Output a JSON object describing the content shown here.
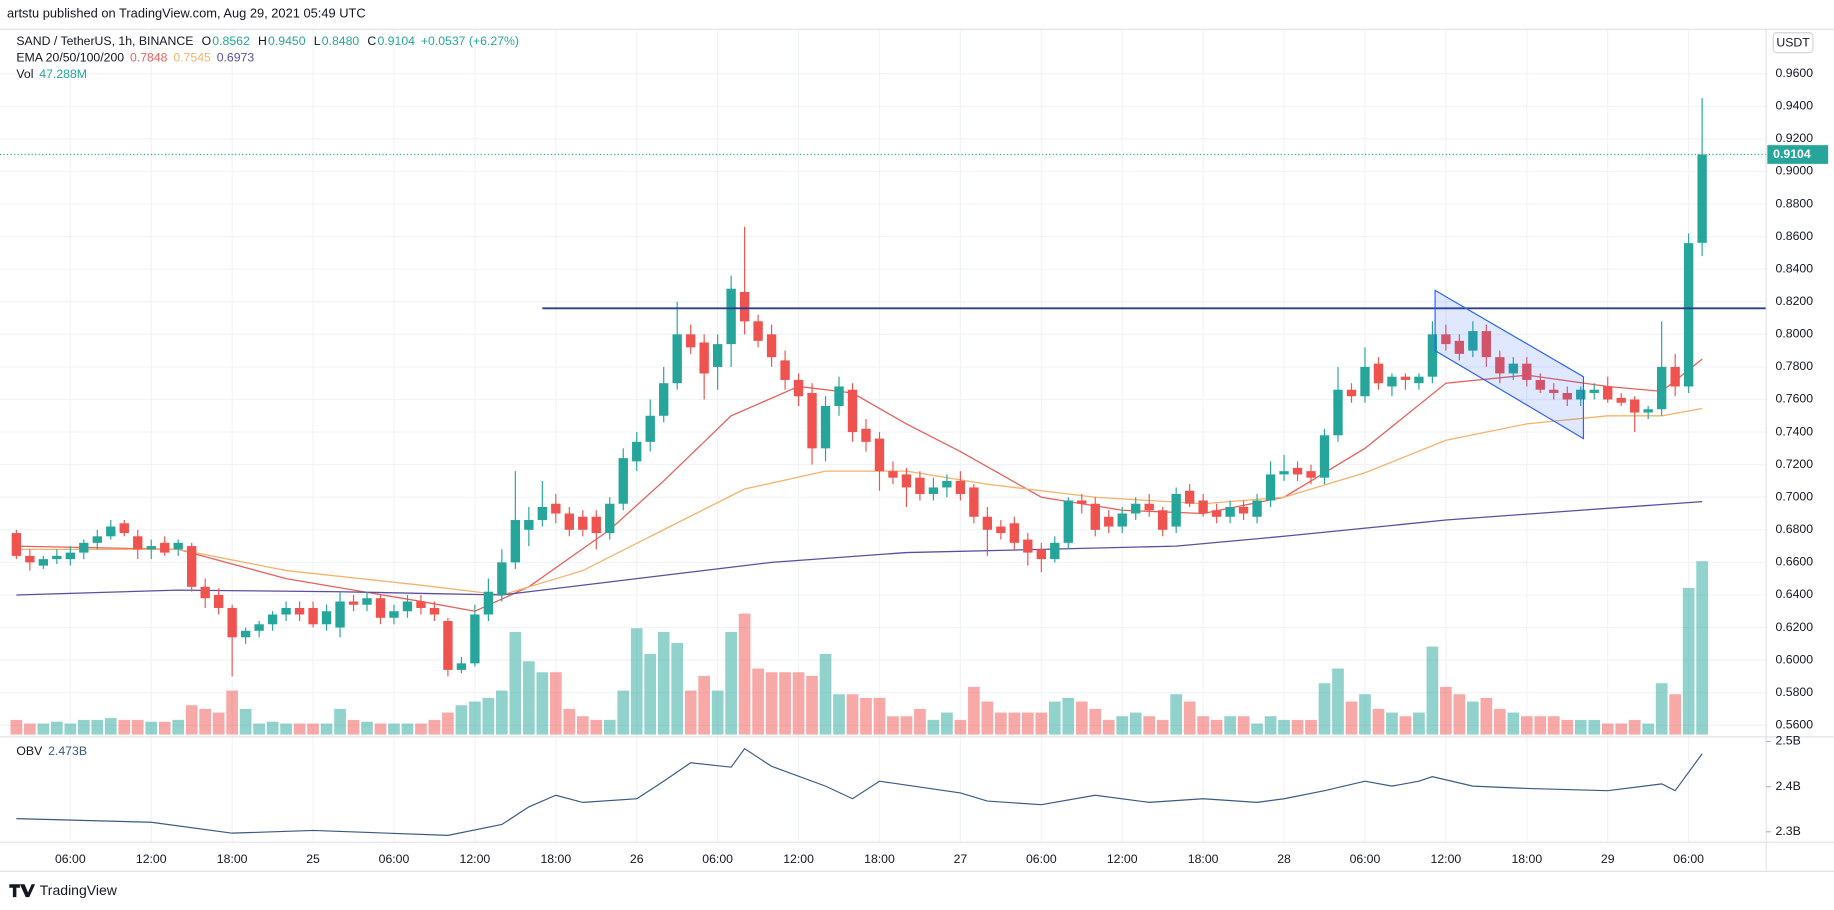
{
  "header": {
    "published": "artstu published on TradingView.com, Aug 29, 2021 05:49 UTC",
    "currency": "USDT"
  },
  "footer": {
    "brand": "TradingView"
  },
  "chart_data": {
    "type": "candlestick",
    "legend": {
      "symbol": "SAND / TetherUS, 1h, BINANCE",
      "ohlc": [
        {
          "key": "O",
          "value": "0.8562"
        },
        {
          "key": "H",
          "value": "0.9450"
        },
        {
          "key": "L",
          "value": "0.8480"
        },
        {
          "key": "C",
          "value": "0.9104"
        }
      ],
      "change": "+0.0537 (+6.27%)",
      "ema_title": "EMA 20/50/100/200",
      "ema_values": [
        "0.7848",
        "0.7545",
        "0.6973"
      ],
      "vol_title": "Vol",
      "vol_value": "47.288M"
    },
    "up_color": "#26a69a",
    "down_color": "#ef5350",
    "categories": [
      null,
      null,
      null,
      null,
      "06:00",
      null,
      null,
      null,
      null,
      null,
      "12:00",
      null,
      null,
      null,
      null,
      null,
      "18:00",
      null,
      null,
      null,
      null,
      null,
      "25",
      null,
      null,
      null,
      null,
      null,
      "06:00",
      null,
      null,
      null,
      null,
      null,
      "12:00",
      null,
      null,
      null,
      null,
      null,
      "18:00",
      null,
      null,
      null,
      null,
      null,
      "26",
      null,
      null,
      null,
      null,
      null,
      "06:00",
      null,
      null,
      null,
      null,
      null,
      "12:00",
      null,
      null,
      null,
      null,
      null,
      "18:00",
      null,
      null,
      null,
      null,
      null,
      "27",
      null,
      null,
      null,
      null,
      null,
      "06:00",
      null,
      null,
      null,
      null,
      null,
      "12:00",
      null,
      null,
      null,
      null,
      null,
      "18:00",
      null,
      null,
      null,
      null,
      null,
      "28",
      null,
      null,
      null,
      null,
      null,
      "06:00",
      null,
      null,
      null,
      null,
      null,
      "12:00",
      null,
      null,
      null,
      null,
      null,
      "18:00",
      null,
      null,
      null,
      null,
      null,
      "29",
      null,
      null,
      null,
      null,
      null,
      "06:00",
      null
    ],
    "candles": [
      [
        0.678,
        0.68,
        0.662,
        0.664
      ],
      [
        0.664,
        0.668,
        0.655,
        0.66
      ],
      [
        0.658,
        0.664,
        0.656,
        0.662
      ],
      [
        0.662,
        0.668,
        0.659,
        0.664
      ],
      [
        0.662,
        0.67,
        0.658,
        0.666
      ],
      [
        0.666,
        0.674,
        0.662,
        0.672
      ],
      [
        0.672,
        0.68,
        0.668,
        0.676
      ],
      [
        0.676,
        0.686,
        0.674,
        0.682
      ],
      [
        0.684,
        0.686,
        0.676,
        0.678
      ],
      [
        0.676,
        0.68,
        0.662,
        0.668
      ],
      [
        0.668,
        0.674,
        0.662,
        0.67
      ],
      [
        0.672,
        0.676,
        0.664,
        0.666
      ],
      [
        0.668,
        0.674,
        0.664,
        0.672
      ],
      [
        0.67,
        0.672,
        0.642,
        0.645
      ],
      [
        0.645,
        0.65,
        0.632,
        0.638
      ],
      [
        0.64,
        0.644,
        0.628,
        0.632
      ],
      [
        0.632,
        0.634,
        0.59,
        0.614
      ],
      [
        0.614,
        0.62,
        0.61,
        0.618
      ],
      [
        0.618,
        0.624,
        0.614,
        0.622
      ],
      [
        0.622,
        0.63,
        0.618,
        0.628
      ],
      [
        0.628,
        0.636,
        0.624,
        0.632
      ],
      [
        0.632,
        0.636,
        0.624,
        0.628
      ],
      [
        0.632,
        0.636,
        0.62,
        0.622
      ],
      [
        0.622,
        0.634,
        0.618,
        0.63
      ],
      [
        0.62,
        0.642,
        0.614,
        0.636
      ],
      [
        0.636,
        0.64,
        0.63,
        0.634
      ],
      [
        0.634,
        0.642,
        0.63,
        0.638
      ],
      [
        0.638,
        0.64,
        0.622,
        0.626
      ],
      [
        0.626,
        0.634,
        0.622,
        0.63
      ],
      [
        0.63,
        0.64,
        0.626,
        0.636
      ],
      [
        0.636,
        0.64,
        0.628,
        0.632
      ],
      [
        0.632,
        0.636,
        0.624,
        0.628
      ],
      [
        0.624,
        0.626,
        0.59,
        0.594
      ],
      [
        0.594,
        0.602,
        0.592,
        0.598
      ],
      [
        0.598,
        0.634,
        0.596,
        0.628
      ],
      [
        0.628,
        0.65,
        0.624,
        0.642
      ],
      [
        0.64,
        0.668,
        0.636,
        0.66
      ],
      [
        0.66,
        0.716,
        0.656,
        0.686
      ],
      [
        0.68,
        0.694,
        0.67,
        0.686
      ],
      [
        0.686,
        0.71,
        0.682,
        0.694
      ],
      [
        0.696,
        0.702,
        0.684,
        0.69
      ],
      [
        0.69,
        0.694,
        0.676,
        0.68
      ],
      [
        0.688,
        0.692,
        0.676,
        0.68
      ],
      [
        0.688,
        0.692,
        0.668,
        0.678
      ],
      [
        0.678,
        0.7,
        0.674,
        0.696
      ],
      [
        0.696,
        0.73,
        0.692,
        0.724
      ],
      [
        0.722,
        0.74,
        0.716,
        0.734
      ],
      [
        0.734,
        0.76,
        0.728,
        0.75
      ],
      [
        0.75,
        0.78,
        0.746,
        0.77
      ],
      [
        0.77,
        0.82,
        0.766,
        0.8
      ],
      [
        0.8,
        0.806,
        0.788,
        0.792
      ],
      [
        0.795,
        0.8,
        0.76,
        0.776
      ],
      [
        0.78,
        0.8,
        0.766,
        0.794
      ],
      [
        0.794,
        0.836,
        0.78,
        0.828
      ],
      [
        0.826,
        0.866,
        0.8,
        0.808
      ],
      [
        0.808,
        0.812,
        0.792,
        0.796
      ],
      [
        0.8,
        0.806,
        0.78,
        0.786
      ],
      [
        0.784,
        0.79,
        0.766,
        0.772
      ],
      [
        0.772,
        0.776,
        0.756,
        0.762
      ],
      [
        0.764,
        0.77,
        0.72,
        0.73
      ],
      [
        0.73,
        0.762,
        0.722,
        0.756
      ],
      [
        0.756,
        0.774,
        0.75,
        0.768
      ],
      [
        0.766,
        0.77,
        0.734,
        0.74
      ],
      [
        0.742,
        0.748,
        0.728,
        0.734
      ],
      [
        0.736,
        0.74,
        0.704,
        0.716
      ],
      [
        0.716,
        0.722,
        0.708,
        0.712
      ],
      [
        0.714,
        0.718,
        0.694,
        0.706
      ],
      [
        0.712,
        0.716,
        0.698,
        0.702
      ],
      [
        0.702,
        0.712,
        0.698,
        0.706
      ],
      [
        0.706,
        0.714,
        0.7,
        0.71
      ],
      [
        0.71,
        0.716,
        0.698,
        0.702
      ],
      [
        0.706,
        0.708,
        0.684,
        0.688
      ],
      [
        0.688,
        0.694,
        0.664,
        0.68
      ],
      [
        0.682,
        0.686,
        0.674,
        0.678
      ],
      [
        0.684,
        0.688,
        0.668,
        0.672
      ],
      [
        0.674,
        0.678,
        0.658,
        0.666
      ],
      [
        0.668,
        0.672,
        0.654,
        0.662
      ],
      [
        0.662,
        0.676,
        0.66,
        0.672
      ],
      [
        0.672,
        0.7,
        0.668,
        0.698
      ],
      [
        0.698,
        0.702,
        0.69,
        0.696
      ],
      [
        0.696,
        0.7,
        0.676,
        0.68
      ],
      [
        0.688,
        0.692,
        0.678,
        0.682
      ],
      [
        0.682,
        0.694,
        0.678,
        0.69
      ],
      [
        0.69,
        0.7,
        0.686,
        0.696
      ],
      [
        0.696,
        0.702,
        0.688,
        0.692
      ],
      [
        0.692,
        0.694,
        0.676,
        0.68
      ],
      [
        0.682,
        0.706,
        0.678,
        0.702
      ],
      [
        0.704,
        0.708,
        0.694,
        0.696
      ],
      [
        0.698,
        0.702,
        0.688,
        0.69
      ],
      [
        0.692,
        0.696,
        0.684,
        0.688
      ],
      [
        0.688,
        0.698,
        0.684,
        0.694
      ],
      [
        0.694,
        0.698,
        0.686,
        0.69
      ],
      [
        0.688,
        0.702,
        0.684,
        0.698
      ],
      [
        0.698,
        0.722,
        0.694,
        0.714
      ],
      [
        0.714,
        0.726,
        0.71,
        0.716
      ],
      [
        0.718,
        0.722,
        0.71,
        0.714
      ],
      [
        0.716,
        0.72,
        0.708,
        0.712
      ],
      [
        0.712,
        0.742,
        0.708,
        0.738
      ],
      [
        0.738,
        0.78,
        0.734,
        0.766
      ],
      [
        0.766,
        0.77,
        0.758,
        0.762
      ],
      [
        0.762,
        0.792,
        0.758,
        0.78
      ],
      [
        0.782,
        0.786,
        0.766,
        0.77
      ],
      [
        0.768,
        0.776,
        0.762,
        0.774
      ],
      [
        0.774,
        0.776,
        0.766,
        0.772
      ],
      [
        0.77,
        0.776,
        0.766,
        0.774
      ],
      [
        0.774,
        0.808,
        0.77,
        0.8
      ],
      [
        0.8,
        0.806,
        0.79,
        0.794
      ],
      [
        0.796,
        0.8,
        0.784,
        0.788
      ],
      [
        0.79,
        0.808,
        0.786,
        0.802
      ],
      [
        0.802,
        0.806,
        0.78,
        0.786
      ],
      [
        0.786,
        0.79,
        0.77,
        0.776
      ],
      [
        0.776,
        0.786,
        0.772,
        0.782
      ],
      [
        0.782,
        0.786,
        0.768,
        0.772
      ],
      [
        0.772,
        0.776,
        0.764,
        0.766
      ],
      [
        0.766,
        0.77,
        0.76,
        0.764
      ],
      [
        0.764,
        0.768,
        0.756,
        0.76
      ],
      [
        0.76,
        0.768,
        0.756,
        0.766
      ],
      [
        0.764,
        0.77,
        0.76,
        0.766
      ],
      [
        0.768,
        0.774,
        0.758,
        0.76
      ],
      [
        0.761,
        0.764,
        0.756,
        0.758
      ],
      [
        0.76,
        0.762,
        0.74,
        0.752
      ],
      [
        0.752,
        0.756,
        0.748,
        0.754
      ],
      [
        0.754,
        0.808,
        0.75,
        0.78
      ],
      [
        0.78,
        0.788,
        0.762,
        0.768
      ],
      [
        0.768,
        0.862,
        0.764,
        0.856
      ],
      [
        0.8562,
        0.945,
        0.848,
        0.9104
      ]
    ],
    "ylim": [
      0.5543,
      0.9873
    ],
    "yticks": [
      {
        "value": 0.56,
        "label": "0.5600"
      },
      {
        "value": 0.58,
        "label": "0.5800"
      },
      {
        "value": 0.6,
        "label": "0.6000"
      },
      {
        "value": 0.62,
        "label": "0.6200"
      },
      {
        "value": 0.64,
        "label": "0.6400"
      },
      {
        "value": 0.66,
        "label": "0.6600"
      },
      {
        "value": 0.68,
        "label": "0.6800"
      },
      {
        "value": 0.7,
        "label": "0.7000"
      },
      {
        "value": 0.72,
        "label": "0.7200"
      },
      {
        "value": 0.74,
        "label": "0.7400"
      },
      {
        "value": 0.76,
        "label": "0.7600"
      },
      {
        "value": 0.78,
        "label": "0.7800"
      },
      {
        "value": 0.8,
        "label": "0.8000"
      },
      {
        "value": 0.82,
        "label": "0.8200"
      },
      {
        "value": 0.84,
        "label": "0.8400"
      },
      {
        "value": 0.86,
        "label": "0.8600"
      },
      {
        "value": 0.88,
        "label": "0.8800"
      },
      {
        "value": 0.9,
        "label": "0.9000"
      },
      {
        "value": 0.92,
        "label": "0.9200"
      },
      {
        "value": 0.94,
        "label": "0.9400"
      },
      {
        "value": 0.96,
        "label": "0.9600"
      }
    ],
    "grid": true,
    "last_price_label": "0.9104",
    "series": [
      {
        "name": "EMA 20",
        "color": "#e8605c",
        "x": [
          0,
          12,
          20,
          30,
          34,
          38,
          44,
          48,
          53,
          58,
          62,
          66,
          70,
          76,
          82,
          88,
          94,
          100,
          106,
          112,
          118,
          122,
          125
        ],
        "values": [
          0.67,
          0.668,
          0.65,
          0.636,
          0.63,
          0.645,
          0.68,
          0.71,
          0.75,
          0.768,
          0.764,
          0.745,
          0.728,
          0.7,
          0.692,
          0.69,
          0.7,
          0.73,
          0.77,
          0.775,
          0.768,
          0.765,
          0.7848
        ]
      },
      {
        "name": "EMA 50",
        "color": "#f5b26b",
        "x": [
          0,
          12,
          20,
          30,
          36,
          42,
          48,
          54,
          60,
          66,
          72,
          80,
          88,
          94,
          100,
          106,
          112,
          118,
          122,
          125
        ],
        "values": [
          0.668,
          0.668,
          0.655,
          0.646,
          0.64,
          0.655,
          0.68,
          0.705,
          0.716,
          0.716,
          0.708,
          0.7,
          0.696,
          0.7,
          0.715,
          0.735,
          0.745,
          0.75,
          0.75,
          0.7545
        ]
      },
      {
        "name": "EMA 100",
        "color": "#5b4ea0",
        "x": [
          0,
          12,
          24,
          36,
          46,
          56,
          66,
          76,
          86,
          94,
          106,
          116,
          125
        ],
        "values": [
          0.64,
          0.643,
          0.642,
          0.64,
          0.65,
          0.66,
          0.666,
          0.668,
          0.67,
          0.676,
          0.686,
          0.692,
          0.6973
        ]
      }
    ],
    "volume": {
      "ylim": [
        0,
        150
      ],
      "values": [
        4,
        3,
        3,
        3.5,
        3,
        4,
        4,
        4.5,
        4,
        4,
        3.5,
        3.5,
        4,
        8,
        7,
        6,
        12,
        7,
        3,
        3.5,
        3,
        3,
        3,
        3,
        7,
        4,
        3.5,
        3,
        3,
        3,
        3,
        4,
        6,
        8,
        9,
        10,
        12,
        28,
        20,
        17,
        17,
        7,
        5,
        4,
        4,
        12,
        29,
        22,
        28,
        25,
        12,
        16,
        12,
        28,
        33,
        18,
        17,
        17,
        17,
        16,
        22,
        11,
        11,
        10,
        10,
        5,
        5,
        7,
        4,
        6,
        4,
        13,
        9,
        6,
        6,
        6,
        6,
        9,
        10,
        9,
        7,
        4,
        5,
        6,
        5,
        4,
        11,
        9,
        5,
        4,
        5,
        5,
        3,
        5,
        4,
        4,
        4,
        14,
        18,
        9,
        11,
        7,
        6,
        5,
        6,
        24,
        13,
        11,
        9,
        10,
        7,
        6,
        5,
        5,
        5,
        4,
        4,
        4,
        3,
        3,
        4,
        3,
        14,
        11,
        40,
        47.288
      ]
    },
    "horizontal_line": {
      "value": 0.816,
      "x_start": 39,
      "color": "#2a3f8f"
    },
    "channel": {
      "x": [
        105.2,
        116.2
      ],
      "upper": [
        0.827,
        0.774
      ],
      "lower": [
        0.79,
        0.736
      ],
      "color": "#2962ff"
    },
    "obv": {
      "name": "OBV",
      "value_label": "2.473B",
      "color": "#3c5a80",
      "ylim": [
        2.277,
        2.505
      ],
      "yticks": [
        {
          "value": 2.3,
          "label": "2.3B"
        },
        {
          "value": 2.4,
          "label": "2.4B"
        },
        {
          "value": 2.5,
          "label": "2.5B"
        }
      ],
      "x": [
        0,
        10,
        16,
        22,
        32,
        36,
        38,
        40,
        42,
        46,
        48,
        50,
        53,
        54,
        56,
        60,
        62,
        64,
        70,
        72,
        76,
        80,
        84,
        88,
        92,
        94,
        97,
        100,
        102,
        104,
        105,
        108,
        112,
        118,
        122,
        123,
        125
      ],
      "values": [
        2.329,
        2.321,
        2.297,
        2.303,
        2.292,
        2.316,
        2.355,
        2.381,
        2.365,
        2.373,
        2.412,
        2.453,
        2.443,
        2.484,
        2.445,
        2.401,
        2.373,
        2.412,
        2.386,
        2.368,
        2.36,
        2.381,
        2.365,
        2.373,
        2.365,
        2.373,
        2.391,
        2.412,
        2.401,
        2.412,
        2.422,
        2.401,
        2.396,
        2.391,
        2.406,
        2.391,
        2.473
      ]
    }
  }
}
